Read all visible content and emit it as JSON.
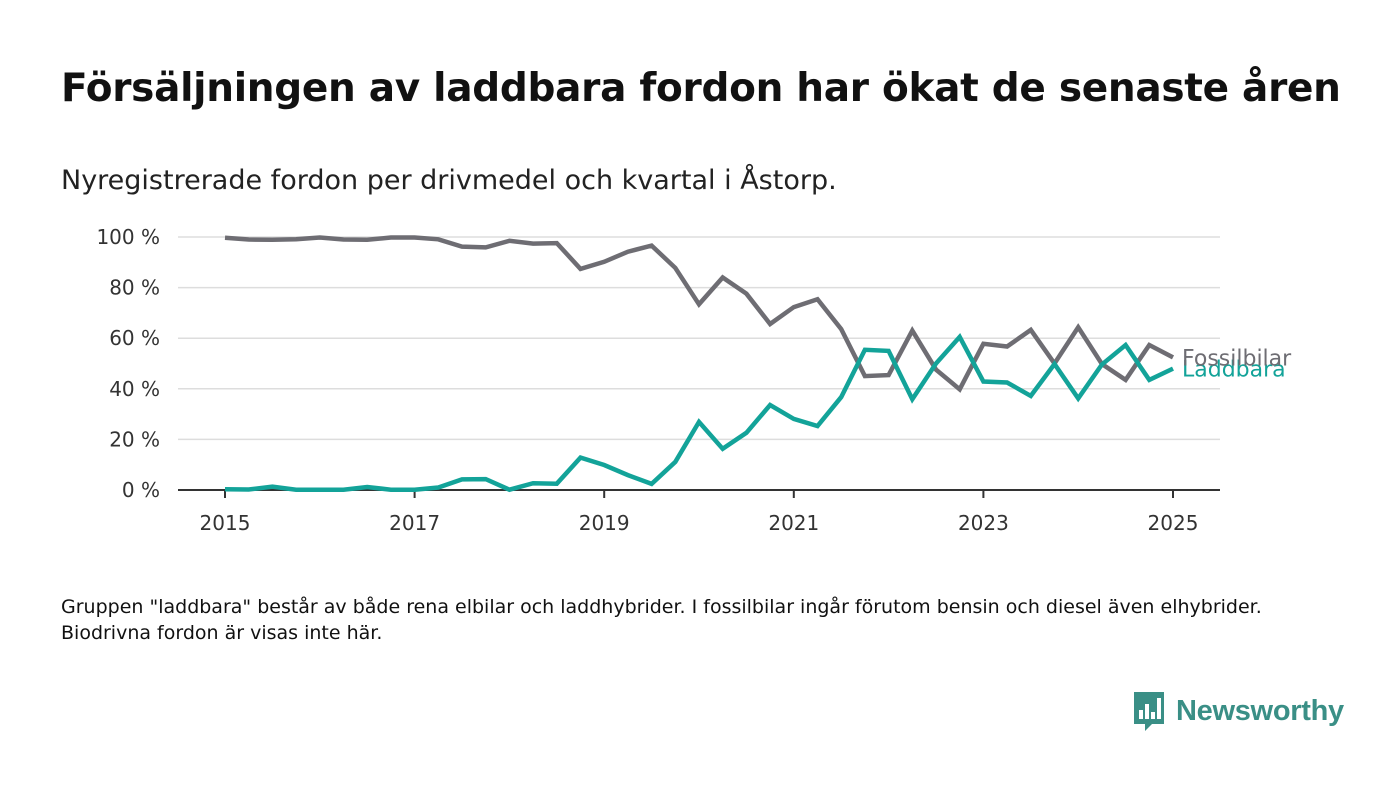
{
  "title": "Försäljningen av laddbara fordon har ökat de senaste åren",
  "subtitle": "Nyregistrerade fordon per drivmedel och kvartal i Åstorp.",
  "note": "Gruppen \"laddbara\" består av både rena elbilar och laddhybrider. I fossilbilar ingår förutom bensin och diesel även elhybrider. Biodrivna fordon är visas inte här.",
  "brand": {
    "name": "Newsworthy",
    "color": "#3a8f86",
    "icon": "bar-chart-speech-bubble-icon"
  },
  "chart_data": {
    "type": "line",
    "x": [
      2015.0,
      2015.25,
      2015.5,
      2015.75,
      2016.0,
      2016.25,
      2016.5,
      2016.75,
      2017.0,
      2017.25,
      2017.5,
      2017.75,
      2018.0,
      2018.25,
      2018.5,
      2018.75,
      2019.0,
      2019.25,
      2019.5,
      2019.75,
      2020.0,
      2020.25,
      2020.5,
      2020.75,
      2021.0,
      2021.25,
      2021.5,
      2021.75,
      2022.0,
      2022.25,
      2022.5,
      2022.75,
      2023.0,
      2023.25,
      2023.5,
      2023.75,
      2024.0,
      2024.25,
      2024.5,
      2024.75,
      2025.0
    ],
    "series": [
      {
        "name": "Fossilbilar",
        "color": "#6e6d73",
        "values": [
          99.7,
          99.0,
          98.9,
          99.1,
          99.8,
          99.0,
          98.9,
          99.8,
          99.8,
          99.1,
          96.2,
          95.9,
          98.5,
          97.4,
          97.6,
          87.4,
          90.2,
          94.2,
          96.6,
          87.8,
          73.4,
          84.0,
          77.6,
          65.6,
          72.3,
          75.4,
          63.6,
          45.0,
          45.4,
          63.0,
          47.6,
          39.8,
          57.8,
          56.7,
          63.3,
          50.0,
          64.3,
          49.8,
          43.5,
          57.3,
          52.4
        ]
      },
      {
        "name": "Laddbara",
        "color": "#13a399",
        "values": [
          0.3,
          0.2,
          1.3,
          0.1,
          0.1,
          0.1,
          1.2,
          0.1,
          0.1,
          1.0,
          4.2,
          4.3,
          0.1,
          2.7,
          2.5,
          12.8,
          9.9,
          5.9,
          2.4,
          11.1,
          26.9,
          16.3,
          22.6,
          33.6,
          28.1,
          25.3,
          36.7,
          55.4,
          55.0,
          35.9,
          50.0,
          60.5,
          42.9,
          42.5,
          37.2,
          49.8,
          36.2,
          49.6,
          57.3,
          43.5,
          48.0
        ]
      }
    ],
    "y_ticks": [
      "0 %",
      "20 %",
      "40 %",
      "60 %",
      "80 %",
      "100 %"
    ],
    "x_ticks": [
      "2015",
      "2017",
      "2019",
      "2021",
      "2023",
      "2025"
    ],
    "xlim": [
      2015,
      2025
    ],
    "ylim": [
      0,
      100
    ],
    "grid": "horizontal",
    "legend": "inline-right"
  }
}
